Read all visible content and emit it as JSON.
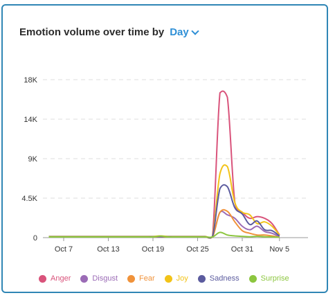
{
  "header": {
    "title": "Emotion volume over time by",
    "granularity": "Day"
  },
  "chart_data": {
    "type": "line",
    "title": "Emotion volume over time by Day",
    "xlabel": "",
    "ylabel": "",
    "x_tick_labels": [
      "Oct 7",
      "Oct 13",
      "Oct 19",
      "Oct 25",
      "Oct 31",
      "Nov 5"
    ],
    "y_tick_labels": [
      "0",
      "4.5K",
      "9K",
      "14K",
      "18K"
    ],
    "y_ticks": [
      0,
      4500,
      9000,
      13500,
      18000
    ],
    "ylim": [
      0,
      18000
    ],
    "x": [
      "Oct 5",
      "Oct 6",
      "Oct 7",
      "Oct 8",
      "Oct 9",
      "Oct 10",
      "Oct 11",
      "Oct 12",
      "Oct 13",
      "Oct 14",
      "Oct 15",
      "Oct 16",
      "Oct 17",
      "Oct 18",
      "Oct 19",
      "Oct 20",
      "Oct 21",
      "Oct 22",
      "Oct 23",
      "Oct 24",
      "Oct 25",
      "Oct 26",
      "Oct 27",
      "Oct 28",
      "Oct 29",
      "Oct 30",
      "Oct 31",
      "Nov 1",
      "Nov 2",
      "Nov 3",
      "Nov 4",
      "Nov 5"
    ],
    "grid": "horizontal-dashed",
    "legend_position": "bottom",
    "series": [
      {
        "name": "Anger",
        "color": "#d9537b",
        "values": [
          120,
          120,
          120,
          120,
          120,
          120,
          120,
          120,
          120,
          120,
          120,
          120,
          120,
          120,
          120,
          120,
          120,
          120,
          120,
          120,
          120,
          120,
          120,
          16500,
          16000,
          4000,
          2900,
          2200,
          2400,
          2200,
          1600,
          300
        ]
      },
      {
        "name": "Disgust",
        "color": "#9b6bb6",
        "values": [
          100,
          100,
          100,
          100,
          100,
          100,
          100,
          100,
          100,
          100,
          100,
          100,
          100,
          100,
          100,
          100,
          100,
          100,
          100,
          100,
          100,
          100,
          100,
          2900,
          2600,
          2200,
          1300,
          900,
          1300,
          700,
          500,
          100
        ]
      },
      {
        "name": "Fear",
        "color": "#f0923a",
        "values": [
          90,
          90,
          90,
          90,
          90,
          90,
          90,
          90,
          90,
          90,
          90,
          90,
          90,
          90,
          90,
          90,
          90,
          90,
          90,
          90,
          90,
          90,
          90,
          2900,
          3000,
          1800,
          800,
          500,
          300,
          300,
          200,
          50
        ]
      },
      {
        "name": "Joy",
        "color": "#f2c318",
        "values": [
          140,
          140,
          140,
          140,
          140,
          140,
          140,
          140,
          140,
          140,
          140,
          140,
          140,
          140,
          140,
          200,
          140,
          140,
          140,
          140,
          140,
          140,
          140,
          7300,
          8100,
          4000,
          2900,
          2600,
          1600,
          1800,
          1300,
          300
        ]
      },
      {
        "name": "Sadness",
        "color": "#5b5b9e",
        "values": [
          110,
          110,
          110,
          110,
          110,
          110,
          110,
          110,
          110,
          110,
          110,
          110,
          110,
          110,
          110,
          110,
          110,
          110,
          110,
          110,
          110,
          110,
          110,
          5600,
          5800,
          3400,
          2700,
          1500,
          1900,
          900,
          800,
          200
        ]
      },
      {
        "name": "Surprise",
        "color": "#8cc63f",
        "values": [
          80,
          80,
          80,
          80,
          80,
          80,
          80,
          80,
          80,
          80,
          80,
          80,
          80,
          80,
          80,
          180,
          80,
          80,
          80,
          80,
          80,
          80,
          80,
          600,
          300,
          200,
          150,
          100,
          150,
          100,
          80,
          40
        ]
      }
    ]
  }
}
